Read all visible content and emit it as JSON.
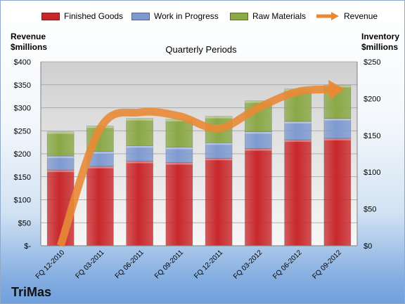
{
  "legend": {
    "finished_goods": "Finished Goods",
    "wip": "Work in Progress",
    "raw_materials": "Raw Materials",
    "revenue": "Revenue"
  },
  "axes": {
    "left_title_1": "Revenue",
    "left_title_2": "$millions",
    "right_title_1": "Inventory",
    "right_title_2": "$millions"
  },
  "chart_title": "Quarterly Periods",
  "brand": "TriMas",
  "colors": {
    "finished_goods": "#c8282b",
    "wip": "#7e9ad0",
    "raw_materials": "#8aa846",
    "revenue": "#e88a35"
  },
  "chart_data": {
    "type": "bar",
    "categories": [
      "FQ 12-2010",
      "FQ 03-2011",
      "FQ 06-2011",
      "FQ 09-2011",
      "FQ 12-2011",
      "FQ 03-2012",
      "FQ 06-2012",
      "FQ 09-2012"
    ],
    "series": [
      {
        "name": "Finished Goods",
        "values": [
          103,
          108,
          115,
          113,
          119,
          132,
          144,
          146
        ],
        "axis": "right",
        "stack": "inventory"
      },
      {
        "name": "Work in Progress",
        "values": [
          19,
          20,
          21,
          21,
          21,
          23,
          25,
          27
        ],
        "axis": "right",
        "stack": "inventory"
      },
      {
        "name": "Raw Materials",
        "values": [
          33,
          35,
          37,
          38,
          36,
          42,
          44,
          45
        ],
        "axis": "right",
        "stack": "inventory"
      },
      {
        "name": "Revenue",
        "type": "line",
        "axis": "left",
        "values": [
          0,
          255,
          290,
          282,
          255,
          300,
          335,
          340
        ]
      }
    ],
    "title": "Quarterly Periods",
    "ylabel_left": "Revenue $millions",
    "ylabel_right": "Inventory $millions",
    "ylim_left": [
      0,
      400
    ],
    "ylim_right": [
      0,
      250
    ],
    "yticks_left": [
      "$-",
      "$50",
      "$100",
      "$150",
      "$200",
      "$250",
      "$300",
      "$350",
      "$400"
    ],
    "yticks_right": [
      "$0",
      "$50",
      "$100",
      "$150",
      "$200",
      "$250"
    ],
    "legend_position": "top",
    "grid": true
  }
}
